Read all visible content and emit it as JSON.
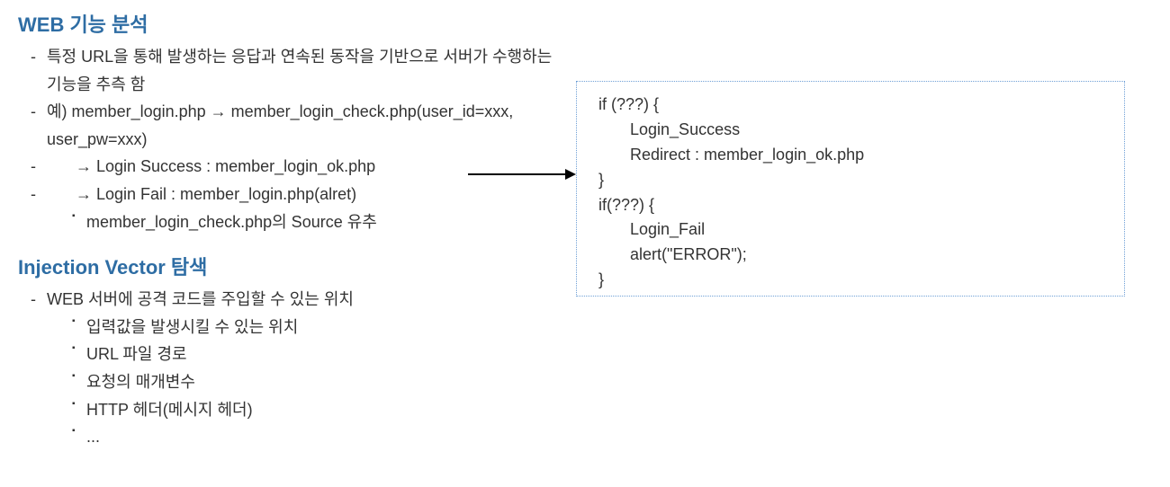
{
  "section1": {
    "title": "WEB 기능 분석",
    "items": [
      "특정 URL을 통해 발생하는 응답과 연속된 동작을 기반으로 서버가 수행하는 기능을 추측 함",
      "예) member_login.php → member_login_check.php(user_id=xxx, user_pw=xxx)",
      "    → Login Success : member_login_ok.php",
      "    → Login Fail : member_login.php(alret)"
    ],
    "subitem": "member_login_check.php의 Source 유추"
  },
  "section2": {
    "title": "Injection Vector 탐색",
    "item": "WEB 서버에 공격 코드를 주입할 수 있는 위치",
    "subitems": [
      "입력값을 발생시킬 수 있는 위치",
      "URL 파일 경로",
      "요청의 매개변수",
      "HTTP 헤더(메시지 헤더)",
      "..."
    ]
  },
  "codebox": {
    "lines": [
      "if (???) {",
      "       Login_Success",
      "       Redirect : member_login_ok.php",
      "}",
      "if(???) {",
      "       Login_Fail",
      "       alert(\"ERROR\");",
      "}"
    ]
  },
  "style": {
    "title_color": "#2e6da4",
    "text_color": "#333333",
    "box_border_color": "#6fa0d6",
    "arrow_color": "#000000",
    "background": "#ffffff",
    "font_base": 18,
    "font_title": 22
  }
}
